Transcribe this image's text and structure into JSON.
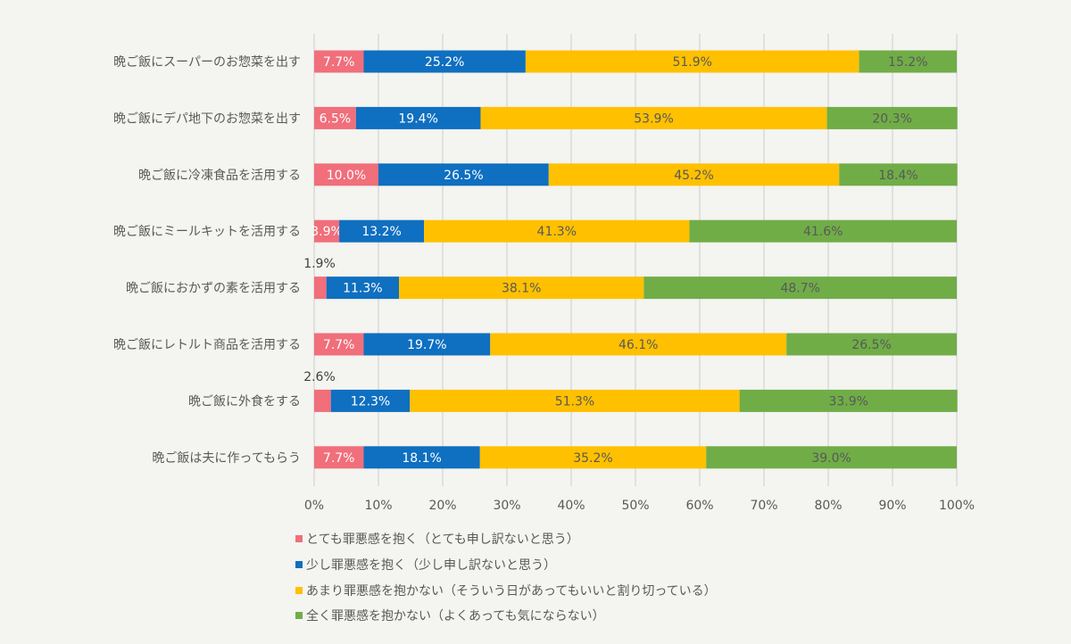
{
  "chart_data": {
    "type": "bar",
    "orientation": "horizontal",
    "stacked": "percent",
    "categories": [
      "晩ご飯にスーパーのお惣菜を出す",
      "晩ご飯にデパ地下のお惣菜を出す",
      "晩ご飯に冷凍食品を活用する",
      "晩ご飯にミールキットを活用する",
      "晩ご飯におかずの素を活用する",
      "晩ご飯にレトルト商品を活用する",
      "晩ご飯に外食をする",
      "晩ご飯は夫に作ってもらう"
    ],
    "series": [
      {
        "name": "とても罪悪感を抱く（とても申し訳ないと思う）",
        "color": "#f16e7b",
        "values": [
          7.7,
          6.5,
          10.0,
          3.9,
          1.9,
          7.7,
          2.6,
          7.7
        ]
      },
      {
        "name": "少し罪悪感を抱く（少し申し訳ないと思う）",
        "color": "#0f6fc0",
        "values": [
          25.2,
          19.4,
          26.5,
          13.2,
          11.3,
          19.7,
          12.3,
          18.1
        ]
      },
      {
        "name": "あまり罪悪感を抱かない（そういう日があってもいいと割り切っている）",
        "color": "#ffc000",
        "values": [
          51.9,
          53.9,
          45.2,
          41.3,
          38.1,
          46.1,
          51.3,
          35.2
        ]
      },
      {
        "name": "全く罪悪感を抱かない（よくあっても気にならない）",
        "color": "#70ad47",
        "values": [
          15.2,
          20.3,
          18.4,
          41.6,
          48.7,
          26.5,
          33.9,
          39.0
        ]
      }
    ],
    "xlim": [
      0,
      100
    ],
    "xticks": [
      "0%",
      "10%",
      "20%",
      "30%",
      "40%",
      "50%",
      "60%",
      "70%",
      "80%",
      "90%",
      "100%"
    ],
    "grid": true,
    "legend_position": "bottom",
    "value_format": "0.0%"
  }
}
